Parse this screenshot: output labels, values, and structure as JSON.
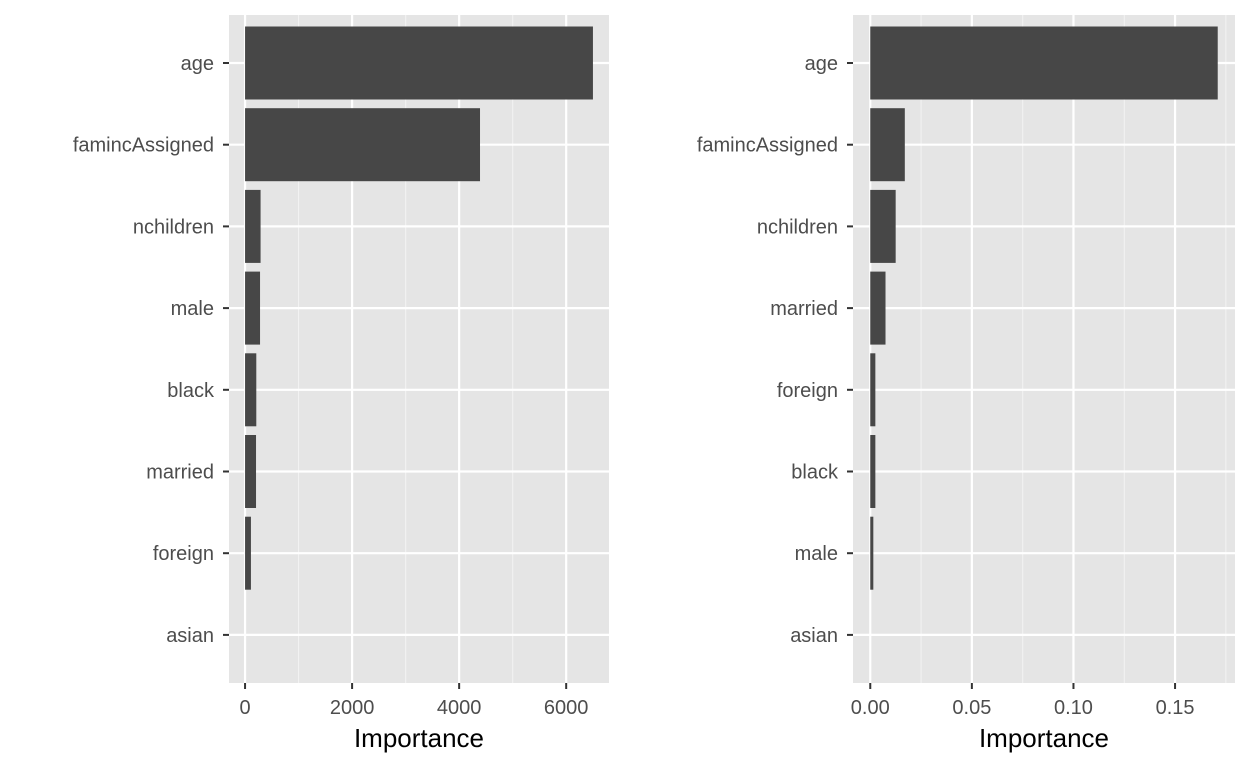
{
  "colors": {
    "panel_background": "#e5e5e5",
    "grid_major": "#ffffff",
    "grid_minor": "#f2f2f2",
    "bar_fill": "#474747",
    "tick_text": "#4d4d4d",
    "tick_mark": "#333333",
    "title_text": "#000000"
  },
  "chart_data": [
    {
      "type": "bar",
      "orientation": "horizontal",
      "categories": [
        "age",
        "famincAssigned",
        "nchildren",
        "male",
        "black",
        "married",
        "foreign",
        "asian"
      ],
      "values": [
        6500,
        4390,
        290,
        280,
        210,
        205,
        110,
        0
      ],
      "xlabel": "Importance",
      "xlim": [
        -300,
        6800
      ],
      "xticks": [
        0,
        2000,
        4000,
        6000
      ],
      "xtick_labels": [
        "0",
        "2000",
        "4000",
        "6000"
      ],
      "minor_xticks": [
        1000,
        3000,
        5000
      ],
      "grid": true
    },
    {
      "type": "bar",
      "orientation": "horizontal",
      "categories": [
        "age",
        "famincAssigned",
        "nchildren",
        "married",
        "foreign",
        "black",
        "male",
        "asian"
      ],
      "values": [
        0.171,
        0.017,
        0.0125,
        0.0075,
        0.0025,
        0.0025,
        0.0015,
        0
      ],
      "xlabel": "Importance",
      "xlim": [
        -0.0085,
        0.1795
      ],
      "xticks": [
        0,
        0.05,
        0.1,
        0.15
      ],
      "xtick_labels": [
        "0.00",
        "0.05",
        "0.10",
        "0.15"
      ],
      "minor_xticks": [
        0.025,
        0.075,
        0.125,
        0.175
      ],
      "grid": true
    }
  ]
}
